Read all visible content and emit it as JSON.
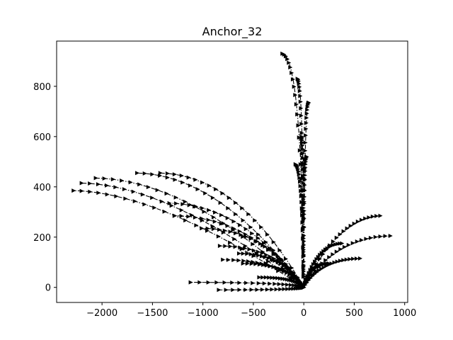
{
  "chart_data": {
    "type": "line",
    "title": "Anchor_32",
    "xlabel": "",
    "ylabel": "",
    "xlim": [
      -2450,
      1030
    ],
    "ylim": [
      -60,
      980
    ],
    "xticks": [
      -2000,
      -1500,
      -1000,
      -500,
      0,
      500,
      1000
    ],
    "xtick_labels": [
      "−2000",
      "−1500",
      "−1000",
      "−500",
      "0",
      "500",
      "1000"
    ],
    "yticks": [
      0,
      200,
      400,
      600,
      800
    ],
    "ytick_labels": [
      "0",
      "200",
      "400",
      "600",
      "800"
    ],
    "grid": false,
    "line_style": "dash-dot",
    "marker": "triangle-right",
    "color": "#000000",
    "series": [
      {
        "endpoint": [
          -2280,
          385
        ],
        "bend": 0.62
      },
      {
        "endpoint": [
          -2200,
          415
        ],
        "bend": 0.6
      },
      {
        "endpoint": [
          -2060,
          435
        ],
        "bend": 0.55
      },
      {
        "endpoint": [
          -1650,
          455
        ],
        "bend": 0.5
      },
      {
        "endpoint": [
          -1420,
          455
        ],
        "bend": 0.45
      },
      {
        "endpoint": [
          -1330,
          335
        ],
        "bend": 0.45
      },
      {
        "endpoint": [
          -1280,
          285
        ],
        "bend": 0.4
      },
      {
        "endpoint": [
          -1010,
          235
        ],
        "bend": 0.35
      },
      {
        "endpoint": [
          -830,
          165
        ],
        "bend": 0.3
      },
      {
        "endpoint": [
          -800,
          110
        ],
        "bend": 0.25
      },
      {
        "endpoint": [
          -1120,
          20
        ],
        "bend": 0.1
      },
      {
        "endpoint": [
          -840,
          -10
        ],
        "bend": 0.05
      },
      {
        "endpoint": [
          -640,
          135
        ],
        "bend": 0.3
      },
      {
        "endpoint": [
          -600,
          95
        ],
        "bend": 0.2
      },
      {
        "endpoint": [
          -440,
          40
        ],
        "bend": 0.15
      },
      {
        "endpoint": [
          -210,
          930
        ],
        "bend": 0.1
      },
      {
        "endpoint": [
          -60,
          830
        ],
        "bend": 0.1
      },
      {
        "endpoint": [
          50,
          735
        ],
        "bend": 0.1
      },
      {
        "endpoint": [
          -80,
          490
        ],
        "bend": 0.1
      },
      {
        "endpoint": [
          -20,
          600
        ],
        "bend": 0.05
      },
      {
        "endpoint": [
          30,
          520
        ],
        "bend": 0.05
      },
      {
        "endpoint": [
          760,
          285
        ],
        "bend": 0.45
      },
      {
        "endpoint": [
          860,
          205
        ],
        "bend": 0.35
      },
      {
        "endpoint": [
          560,
          115
        ],
        "bend": 0.3
      },
      {
        "endpoint": [
          380,
          175
        ],
        "bend": 0.35
      },
      {
        "endpoint": [
          250,
          95
        ],
        "bend": 0.25
      }
    ]
  }
}
